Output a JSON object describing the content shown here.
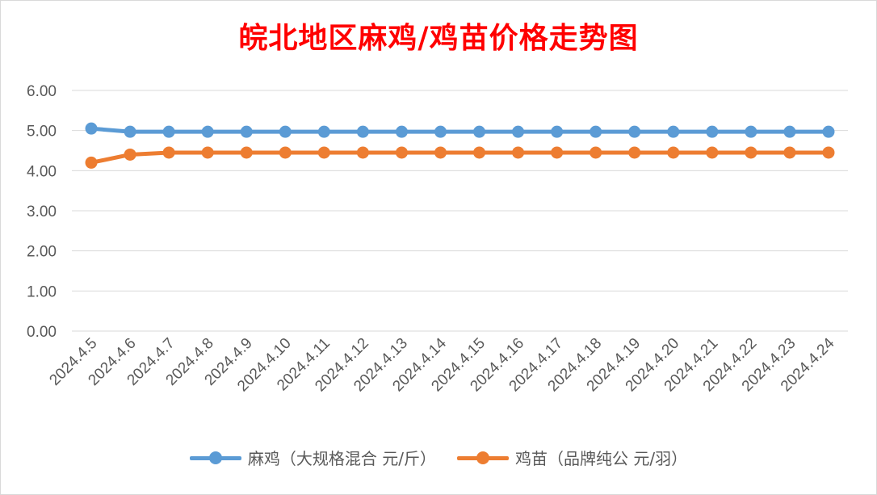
{
  "chart_data": {
    "type": "line",
    "title": "皖北地区麻鸡/鸡苗价格走势图",
    "categories": [
      "2024.4.5",
      "2024.4.6",
      "2024.4.7",
      "2024.4.8",
      "2024.4.9",
      "2024.4.10",
      "2024.4.11",
      "2024.4.12",
      "2024.4.13",
      "2024.4.14",
      "2024.4.15",
      "2024.4.16",
      "2024.4.17",
      "2024.4.18",
      "2024.4.19",
      "2024.4.20",
      "2024.4.21",
      "2024.4.22",
      "2024.4.23",
      "2024.4.24"
    ],
    "series": [
      {
        "name": "麻鸡（大规格混合 元/斤）",
        "color": "#5b9bd5",
        "values": [
          5.05,
          4.97,
          4.97,
          4.97,
          4.97,
          4.97,
          4.97,
          4.97,
          4.97,
          4.97,
          4.97,
          4.97,
          4.97,
          4.97,
          4.97,
          4.97,
          4.97,
          4.97,
          4.97,
          4.97
        ]
      },
      {
        "name": "鸡苗（品牌纯公 元/羽）",
        "color": "#ed7d31",
        "values": [
          4.2,
          4.4,
          4.45,
          4.45,
          4.45,
          4.45,
          4.45,
          4.45,
          4.45,
          4.45,
          4.45,
          4.45,
          4.45,
          4.45,
          4.45,
          4.45,
          4.45,
          4.45,
          4.45,
          4.45
        ]
      }
    ],
    "y_ticks": [
      "0.00",
      "1.00",
      "2.00",
      "3.00",
      "4.00",
      "5.00",
      "6.00"
    ],
    "ylim": [
      0,
      6
    ],
    "grid": true,
    "legend_position": "bottom",
    "title_color": "#ff0000"
  }
}
